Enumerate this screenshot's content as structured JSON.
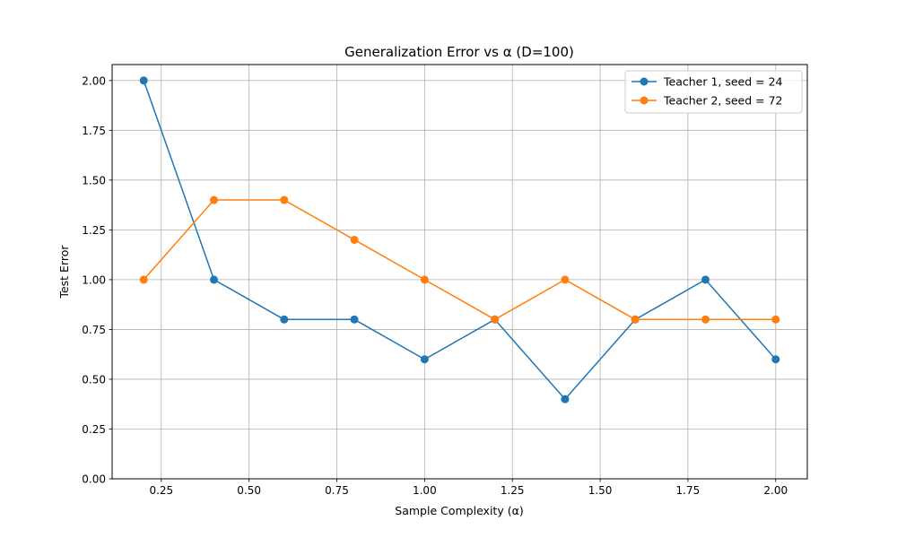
{
  "chart_data": {
    "type": "line",
    "title": "Generalization Error vs α (D=100)",
    "xlabel": "Sample Complexity (α)",
    "ylabel": "Test Error",
    "xlim": [
      0.11,
      2.09
    ],
    "ylim": [
      0.0,
      2.08
    ],
    "xticks": [
      0.25,
      0.5,
      0.75,
      1.0,
      1.25,
      1.5,
      1.75,
      2.0
    ],
    "xtick_labels": [
      "0.25",
      "0.50",
      "0.75",
      "1.00",
      "1.25",
      "1.50",
      "1.75",
      "2.00"
    ],
    "yticks": [
      0.0,
      0.25,
      0.5,
      0.75,
      1.0,
      1.25,
      1.5,
      1.75,
      2.0
    ],
    "ytick_labels": [
      "0.00",
      "0.25",
      "0.50",
      "0.75",
      "1.00",
      "1.25",
      "1.50",
      "1.75",
      "2.00"
    ],
    "grid": true,
    "legend_position": "top-right",
    "x": [
      0.2,
      0.4,
      0.6,
      0.8,
      1.0,
      1.2,
      1.4,
      1.6,
      1.8,
      2.0
    ],
    "series": [
      {
        "name": "Teacher 1, seed = 24",
        "color": "#1f77b4",
        "marker": "circle",
        "values": [
          2.0,
          1.0,
          0.8,
          0.8,
          0.6,
          0.8,
          0.4,
          0.8,
          1.0,
          0.6
        ]
      },
      {
        "name": "Teacher 2, seed = 72",
        "color": "#ff7f0e",
        "marker": "circle",
        "values": [
          1.0,
          1.4,
          1.4,
          1.2,
          1.0,
          0.8,
          1.0,
          0.8,
          0.8,
          0.8
        ]
      }
    ]
  }
}
